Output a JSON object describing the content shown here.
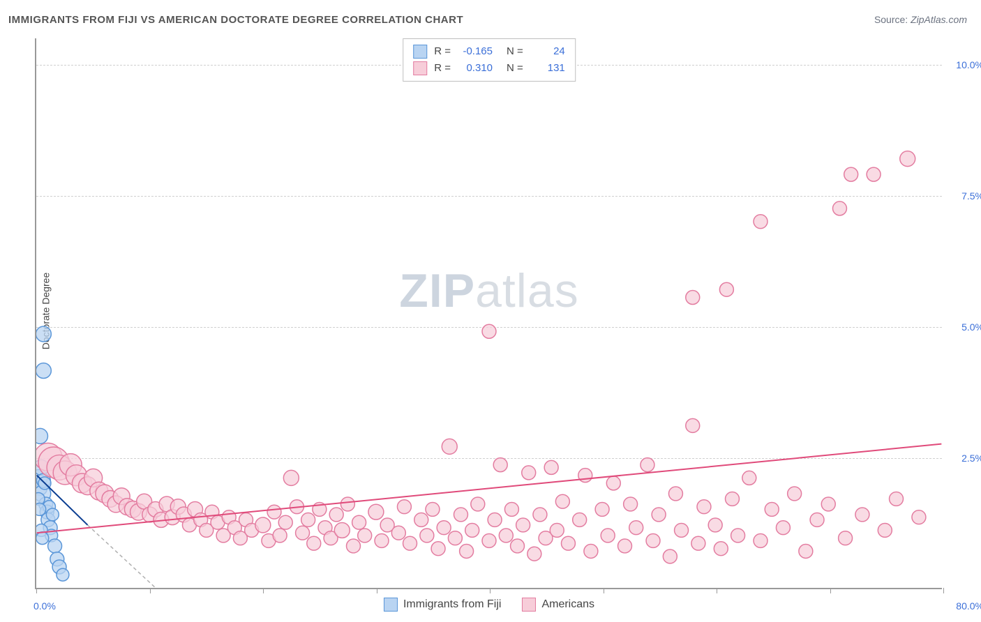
{
  "title": "IMMIGRANTS FROM FIJI VS AMERICAN DOCTORATE DEGREE CORRELATION CHART",
  "source_label": "Source:",
  "source_value": "ZipAtlas.com",
  "watermark_zip": "ZIP",
  "watermark_atlas": "atlas",
  "y_axis_label": "Doctorate Degree",
  "chart": {
    "type": "scatter",
    "xlim": [
      0,
      80
    ],
    "ylim": [
      0,
      10.5
    ],
    "x_ticks": [
      0,
      10,
      20,
      30,
      40,
      50,
      60,
      70,
      80
    ],
    "y_ticks": [
      2.5,
      5.0,
      7.5,
      10.0
    ],
    "y_tick_labels": [
      "2.5%",
      "5.0%",
      "7.5%",
      "10.0%"
    ],
    "x_min_label": "0.0%",
    "x_max_label": "80.0%",
    "background_color": "#ffffff",
    "grid_color": "#d0d0d0",
    "axis_color": "#999999",
    "tick_label_color": "#3b6fd8",
    "series": [
      {
        "id": "fiji",
        "label": "Immigrants from Fiji",
        "marker_fill": "#b9d4f2",
        "marker_stroke": "#5a96d8",
        "marker_opacity": 0.75,
        "trend_color": "#0a3d91",
        "trend_width": 2,
        "extrap_color": "#b0b0b0",
        "extrap_dash": "5,4",
        "R": "-0.165",
        "N": "24",
        "trend": {
          "x1": 0,
          "y1": 2.15,
          "x2": 4.5,
          "y2": 1.2
        },
        "extrap": {
          "x1": 4.5,
          "y1": 1.2,
          "x2": 10.5,
          "y2": 0
        },
        "points": [
          {
            "x": 0.2,
            "y": 2.1,
            "r": 12
          },
          {
            "x": 0.3,
            "y": 1.9,
            "r": 10
          },
          {
            "x": 0.4,
            "y": 2.3,
            "r": 11
          },
          {
            "x": 0.5,
            "y": 1.8,
            "r": 12
          },
          {
            "x": 0.6,
            "y": 2.05,
            "r": 10
          },
          {
            "x": 0.7,
            "y": 2.0,
            "r": 9
          },
          {
            "x": 0.8,
            "y": 1.6,
            "r": 10
          },
          {
            "x": 0.9,
            "y": 1.45,
            "r": 10
          },
          {
            "x": 1.0,
            "y": 1.3,
            "r": 10
          },
          {
            "x": 1.1,
            "y": 1.55,
            "r": 9
          },
          {
            "x": 1.2,
            "y": 1.15,
            "r": 10
          },
          {
            "x": 1.3,
            "y": 1.0,
            "r": 9
          },
          {
            "x": 1.4,
            "y": 1.4,
            "r": 9
          },
          {
            "x": 1.6,
            "y": 0.8,
            "r": 10
          },
          {
            "x": 1.8,
            "y": 0.55,
            "r": 10
          },
          {
            "x": 2.0,
            "y": 0.4,
            "r": 10
          },
          {
            "x": 2.3,
            "y": 0.25,
            "r": 9
          },
          {
            "x": 0.3,
            "y": 2.9,
            "r": 11
          },
          {
            "x": 0.6,
            "y": 4.85,
            "r": 11
          },
          {
            "x": 0.6,
            "y": 4.15,
            "r": 11
          },
          {
            "x": 0.15,
            "y": 1.7,
            "r": 9
          },
          {
            "x": 0.25,
            "y": 1.5,
            "r": 9
          },
          {
            "x": 0.4,
            "y": 1.1,
            "r": 9
          },
          {
            "x": 0.5,
            "y": 0.95,
            "r": 9
          }
        ]
      },
      {
        "id": "americans",
        "label": "Americans",
        "marker_fill": "#f7cdd9",
        "marker_stroke": "#e37ca0",
        "marker_opacity": 0.72,
        "trend_color": "#e04a7a",
        "trend_width": 2,
        "R": "0.310",
        "N": "131",
        "trend": {
          "x1": 0,
          "y1": 1.05,
          "x2": 80,
          "y2": 2.75
        },
        "points": [
          {
            "x": 1.0,
            "y": 2.5,
            "r": 20
          },
          {
            "x": 1.5,
            "y": 2.4,
            "r": 22
          },
          {
            "x": 2.0,
            "y": 2.3,
            "r": 18
          },
          {
            "x": 2.5,
            "y": 2.2,
            "r": 17
          },
          {
            "x": 3.0,
            "y": 2.35,
            "r": 16
          },
          {
            "x": 3.5,
            "y": 2.15,
            "r": 15
          },
          {
            "x": 4.0,
            "y": 2.0,
            "r": 14
          },
          {
            "x": 4.5,
            "y": 1.95,
            "r": 13
          },
          {
            "x": 5.0,
            "y": 2.1,
            "r": 13
          },
          {
            "x": 5.5,
            "y": 1.85,
            "r": 13
          },
          {
            "x": 6.0,
            "y": 1.8,
            "r": 13
          },
          {
            "x": 6.5,
            "y": 1.7,
            "r": 12
          },
          {
            "x": 7.0,
            "y": 1.6,
            "r": 12
          },
          {
            "x": 7.5,
            "y": 1.75,
            "r": 12
          },
          {
            "x": 8.0,
            "y": 1.55,
            "r": 12
          },
          {
            "x": 8.5,
            "y": 1.5,
            "r": 12
          },
          {
            "x": 9.0,
            "y": 1.45,
            "r": 12
          },
          {
            "x": 9.5,
            "y": 1.65,
            "r": 11
          },
          {
            "x": 10,
            "y": 1.4,
            "r": 11
          },
          {
            "x": 10.5,
            "y": 1.5,
            "r": 11
          },
          {
            "x": 11,
            "y": 1.3,
            "r": 11
          },
          {
            "x": 11.5,
            "y": 1.6,
            "r": 11
          },
          {
            "x": 12,
            "y": 1.35,
            "r": 11
          },
          {
            "x": 12.5,
            "y": 1.55,
            "r": 11
          },
          {
            "x": 13,
            "y": 1.4,
            "r": 11
          },
          {
            "x": 13.5,
            "y": 1.2,
            "r": 10
          },
          {
            "x": 14,
            "y": 1.5,
            "r": 11
          },
          {
            "x": 14.5,
            "y": 1.3,
            "r": 10
          },
          {
            "x": 15,
            "y": 1.1,
            "r": 10
          },
          {
            "x": 15.5,
            "y": 1.45,
            "r": 10
          },
          {
            "x": 16,
            "y": 1.25,
            "r": 10
          },
          {
            "x": 16.5,
            "y": 1.0,
            "r": 10
          },
          {
            "x": 17,
            "y": 1.35,
            "r": 10
          },
          {
            "x": 17.5,
            "y": 1.15,
            "r": 10
          },
          {
            "x": 18,
            "y": 0.95,
            "r": 10
          },
          {
            "x": 18.5,
            "y": 1.3,
            "r": 10
          },
          {
            "x": 19,
            "y": 1.1,
            "r": 10
          },
          {
            "x": 20,
            "y": 1.2,
            "r": 11
          },
          {
            "x": 20.5,
            "y": 0.9,
            "r": 10
          },
          {
            "x": 21,
            "y": 1.45,
            "r": 10
          },
          {
            "x": 21.5,
            "y": 1.0,
            "r": 10
          },
          {
            "x": 22,
            "y": 1.25,
            "r": 10
          },
          {
            "x": 22.5,
            "y": 2.1,
            "r": 11
          },
          {
            "x": 23,
            "y": 1.55,
            "r": 10
          },
          {
            "x": 23.5,
            "y": 1.05,
            "r": 10
          },
          {
            "x": 24,
            "y": 1.3,
            "r": 10
          },
          {
            "x": 24.5,
            "y": 0.85,
            "r": 10
          },
          {
            "x": 25,
            "y": 1.5,
            "r": 10
          },
          {
            "x": 25.5,
            "y": 1.15,
            "r": 10
          },
          {
            "x": 26,
            "y": 0.95,
            "r": 10
          },
          {
            "x": 26.5,
            "y": 1.4,
            "r": 10
          },
          {
            "x": 27,
            "y": 1.1,
            "r": 11
          },
          {
            "x": 27.5,
            "y": 1.6,
            "r": 10
          },
          {
            "x": 28,
            "y": 0.8,
            "r": 10
          },
          {
            "x": 28.5,
            "y": 1.25,
            "r": 10
          },
          {
            "x": 29,
            "y": 1.0,
            "r": 10
          },
          {
            "x": 30,
            "y": 1.45,
            "r": 11
          },
          {
            "x": 30.5,
            "y": 0.9,
            "r": 10
          },
          {
            "x": 31,
            "y": 1.2,
            "r": 10
          },
          {
            "x": 32,
            "y": 1.05,
            "r": 10
          },
          {
            "x": 32.5,
            "y": 1.55,
            "r": 10
          },
          {
            "x": 33,
            "y": 0.85,
            "r": 10
          },
          {
            "x": 34,
            "y": 1.3,
            "r": 10
          },
          {
            "x": 34.5,
            "y": 1.0,
            "r": 10
          },
          {
            "x": 35,
            "y": 1.5,
            "r": 10
          },
          {
            "x": 35.5,
            "y": 0.75,
            "r": 10
          },
          {
            "x": 36,
            "y": 1.15,
            "r": 10
          },
          {
            "x": 36.5,
            "y": 2.7,
            "r": 11
          },
          {
            "x": 37,
            "y": 0.95,
            "r": 10
          },
          {
            "x": 37.5,
            "y": 1.4,
            "r": 10
          },
          {
            "x": 38,
            "y": 0.7,
            "r": 10
          },
          {
            "x": 38.5,
            "y": 1.1,
            "r": 10
          },
          {
            "x": 39,
            "y": 1.6,
            "r": 10
          },
          {
            "x": 40,
            "y": 0.9,
            "r": 10
          },
          {
            "x": 40.5,
            "y": 1.3,
            "r": 10
          },
          {
            "x": 41,
            "y": 2.35,
            "r": 10
          },
          {
            "x": 41.5,
            "y": 1.0,
            "r": 10
          },
          {
            "x": 42,
            "y": 1.5,
            "r": 10
          },
          {
            "x": 42.5,
            "y": 0.8,
            "r": 10
          },
          {
            "x": 43,
            "y": 1.2,
            "r": 10
          },
          {
            "x": 43.5,
            "y": 2.2,
            "r": 10
          },
          {
            "x": 44,
            "y": 0.65,
            "r": 10
          },
          {
            "x": 44.5,
            "y": 1.4,
            "r": 10
          },
          {
            "x": 45,
            "y": 0.95,
            "r": 10
          },
          {
            "x": 45.5,
            "y": 2.3,
            "r": 10
          },
          {
            "x": 46,
            "y": 1.1,
            "r": 10
          },
          {
            "x": 46.5,
            "y": 1.65,
            "r": 10
          },
          {
            "x": 40,
            "y": 4.9,
            "r": 10
          },
          {
            "x": 47,
            "y": 0.85,
            "r": 10
          },
          {
            "x": 48,
            "y": 1.3,
            "r": 10
          },
          {
            "x": 48.5,
            "y": 2.15,
            "r": 10
          },
          {
            "x": 49,
            "y": 0.7,
            "r": 10
          },
          {
            "x": 50,
            "y": 1.5,
            "r": 10
          },
          {
            "x": 50.5,
            "y": 1.0,
            "r": 10
          },
          {
            "x": 51,
            "y": 2.0,
            "r": 10
          },
          {
            "x": 52,
            "y": 0.8,
            "r": 10
          },
          {
            "x": 52.5,
            "y": 1.6,
            "r": 10
          },
          {
            "x": 53,
            "y": 1.15,
            "r": 10
          },
          {
            "x": 54,
            "y": 2.35,
            "r": 10
          },
          {
            "x": 54.5,
            "y": 0.9,
            "r": 10
          },
          {
            "x": 55,
            "y": 1.4,
            "r": 10
          },
          {
            "x": 56,
            "y": 0.6,
            "r": 10
          },
          {
            "x": 56.5,
            "y": 1.8,
            "r": 10
          },
          {
            "x": 57,
            "y": 1.1,
            "r": 10
          },
          {
            "x": 58,
            "y": 3.1,
            "r": 10
          },
          {
            "x": 58.5,
            "y": 0.85,
            "r": 10
          },
          {
            "x": 58,
            "y": 5.55,
            "r": 10
          },
          {
            "x": 59,
            "y": 1.55,
            "r": 10
          },
          {
            "x": 60,
            "y": 1.2,
            "r": 10
          },
          {
            "x": 61,
            "y": 5.7,
            "r": 10
          },
          {
            "x": 60.5,
            "y": 0.75,
            "r": 10
          },
          {
            "x": 61.5,
            "y": 1.7,
            "r": 10
          },
          {
            "x": 62,
            "y": 1.0,
            "r": 10
          },
          {
            "x": 63,
            "y": 2.1,
            "r": 10
          },
          {
            "x": 64,
            "y": 0.9,
            "r": 10
          },
          {
            "x": 64,
            "y": 7.0,
            "r": 10
          },
          {
            "x": 65,
            "y": 1.5,
            "r": 10
          },
          {
            "x": 66,
            "y": 1.15,
            "r": 10
          },
          {
            "x": 67,
            "y": 1.8,
            "r": 10
          },
          {
            "x": 68,
            "y": 0.7,
            "r": 10
          },
          {
            "x": 69,
            "y": 1.3,
            "r": 10
          },
          {
            "x": 70,
            "y": 1.6,
            "r": 10
          },
          {
            "x": 71,
            "y": 7.25,
            "r": 10
          },
          {
            "x": 71.5,
            "y": 0.95,
            "r": 10
          },
          {
            "x": 72,
            "y": 7.9,
            "r": 10
          },
          {
            "x": 73,
            "y": 1.4,
            "r": 10
          },
          {
            "x": 74,
            "y": 7.9,
            "r": 10
          },
          {
            "x": 75,
            "y": 1.1,
            "r": 10
          },
          {
            "x": 76,
            "y": 1.7,
            "r": 10
          },
          {
            "x": 77,
            "y": 8.2,
            "r": 11
          },
          {
            "x": 78,
            "y": 1.35,
            "r": 10
          }
        ]
      }
    ]
  },
  "legend_top_labels": {
    "R": "R =",
    "N": "N ="
  },
  "legend_bottom": [
    {
      "label": "Immigrants from Fiji",
      "fill": "#b9d4f2",
      "stroke": "#5a96d8"
    },
    {
      "label": "Americans",
      "fill": "#f7cdd9",
      "stroke": "#e37ca0"
    }
  ]
}
